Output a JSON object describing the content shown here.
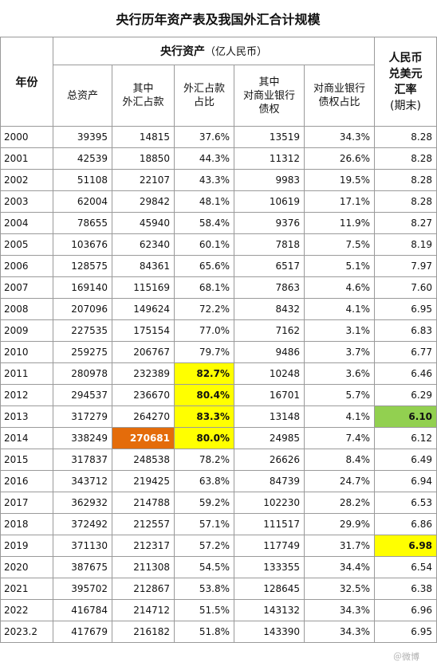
{
  "title": "央行历年资产表及我国外汇合计规模",
  "headers": {
    "year": "年份",
    "group": "央行资产",
    "group_unit": "（亿人民币）",
    "cols": [
      "总资产",
      "其中\n外汇占款",
      "外汇占款\n占比",
      "其中\n对商业银行\n债权",
      "对商业银行\n债权占比"
    ],
    "rate_lines": [
      "人民币",
      "兑美元",
      "汇率",
      "(期末)"
    ]
  },
  "rows": [
    {
      "year": "2000",
      "total": "39395",
      "fx": "14815",
      "fx_ratio": "37.6%",
      "bank": "13519",
      "bank_ratio": "34.3%",
      "rate": "8.28"
    },
    {
      "year": "2001",
      "total": "42539",
      "fx": "18850",
      "fx_ratio": "44.3%",
      "bank": "11312",
      "bank_ratio": "26.6%",
      "rate": "8.28"
    },
    {
      "year": "2002",
      "total": "51108",
      "fx": "22107",
      "fx_ratio": "43.3%",
      "bank": "9983",
      "bank_ratio": "19.5%",
      "rate": "8.28"
    },
    {
      "year": "2003",
      "total": "62004",
      "fx": "29842",
      "fx_ratio": "48.1%",
      "bank": "10619",
      "bank_ratio": "17.1%",
      "rate": "8.28"
    },
    {
      "year": "2004",
      "total": "78655",
      "fx": "45940",
      "fx_ratio": "58.4%",
      "bank": "9376",
      "bank_ratio": "11.9%",
      "rate": "8.27"
    },
    {
      "year": "2005",
      "total": "103676",
      "fx": "62340",
      "fx_ratio": "60.1%",
      "bank": "7818",
      "bank_ratio": "7.5%",
      "rate": "8.19"
    },
    {
      "year": "2006",
      "total": "128575",
      "fx": "84361",
      "fx_ratio": "65.6%",
      "bank": "6517",
      "bank_ratio": "5.1%",
      "rate": "7.97"
    },
    {
      "year": "2007",
      "total": "169140",
      "fx": "115169",
      "fx_ratio": "68.1%",
      "bank": "7863",
      "bank_ratio": "4.6%",
      "rate": "7.60"
    },
    {
      "year": "2008",
      "total": "207096",
      "fx": "149624",
      "fx_ratio": "72.2%",
      "bank": "8432",
      "bank_ratio": "4.1%",
      "rate": "6.95"
    },
    {
      "year": "2009",
      "total": "227535",
      "fx": "175154",
      "fx_ratio": "77.0%",
      "bank": "7162",
      "bank_ratio": "3.1%",
      "rate": "6.83"
    },
    {
      "year": "2010",
      "total": "259275",
      "fx": "206767",
      "fx_ratio": "79.7%",
      "bank": "9486",
      "bank_ratio": "3.7%",
      "rate": "6.77"
    },
    {
      "year": "2011",
      "total": "280978",
      "fx": "232389",
      "fx_ratio": "82.7%",
      "bank": "10248",
      "bank_ratio": "3.6%",
      "rate": "6.46",
      "hl_ratio": "hl-y"
    },
    {
      "year": "2012",
      "total": "294537",
      "fx": "236670",
      "fx_ratio": "80.4%",
      "bank": "16701",
      "bank_ratio": "5.7%",
      "rate": "6.29",
      "hl_ratio": "hl-y"
    },
    {
      "year": "2013",
      "total": "317279",
      "fx": "264270",
      "fx_ratio": "83.3%",
      "bank": "13148",
      "bank_ratio": "4.1%",
      "rate": "6.10",
      "hl_ratio": "hl-y",
      "hl_rate": "hl-g"
    },
    {
      "year": "2014",
      "total": "338249",
      "fx": "270681",
      "fx_ratio": "80.0%",
      "bank": "24985",
      "bank_ratio": "7.4%",
      "rate": "6.12",
      "hl_ratio": "hl-y",
      "hl_fx": "hl-o"
    },
    {
      "year": "2015",
      "total": "317837",
      "fx": "248538",
      "fx_ratio": "78.2%",
      "bank": "26626",
      "bank_ratio": "8.4%",
      "rate": "6.49"
    },
    {
      "year": "2016",
      "total": "343712",
      "fx": "219425",
      "fx_ratio": "63.8%",
      "bank": "84739",
      "bank_ratio": "24.7%",
      "rate": "6.94"
    },
    {
      "year": "2017",
      "total": "362932",
      "fx": "214788",
      "fx_ratio": "59.2%",
      "bank": "102230",
      "bank_ratio": "28.2%",
      "rate": "6.53"
    },
    {
      "year": "2018",
      "total": "372492",
      "fx": "212557",
      "fx_ratio": "57.1%",
      "bank": "111517",
      "bank_ratio": "29.9%",
      "rate": "6.86"
    },
    {
      "year": "2019",
      "total": "371130",
      "fx": "212317",
      "fx_ratio": "57.2%",
      "bank": "117749",
      "bank_ratio": "31.7%",
      "rate": "6.98",
      "hl_rate": "hl-y"
    },
    {
      "year": "2020",
      "total": "387675",
      "fx": "211308",
      "fx_ratio": "54.5%",
      "bank": "133355",
      "bank_ratio": "34.4%",
      "rate": "6.54"
    },
    {
      "year": "2021",
      "total": "395702",
      "fx": "212867",
      "fx_ratio": "53.8%",
      "bank": "128645",
      "bank_ratio": "32.5%",
      "rate": "6.38"
    },
    {
      "year": "2022",
      "total": "416784",
      "fx": "214712",
      "fx_ratio": "51.5%",
      "bank": "143132",
      "bank_ratio": "34.3%",
      "rate": "6.96"
    },
    {
      "year": "2023.2",
      "total": "417679",
      "fx": "216182",
      "fx_ratio": "51.8%",
      "bank": "143390",
      "bank_ratio": "34.3%",
      "rate": "6.95"
    }
  ],
  "colors": {
    "yellow": "#ffff00",
    "orange": "#e46c0a",
    "green": "#92d050",
    "border": "#9a9a9a"
  }
}
